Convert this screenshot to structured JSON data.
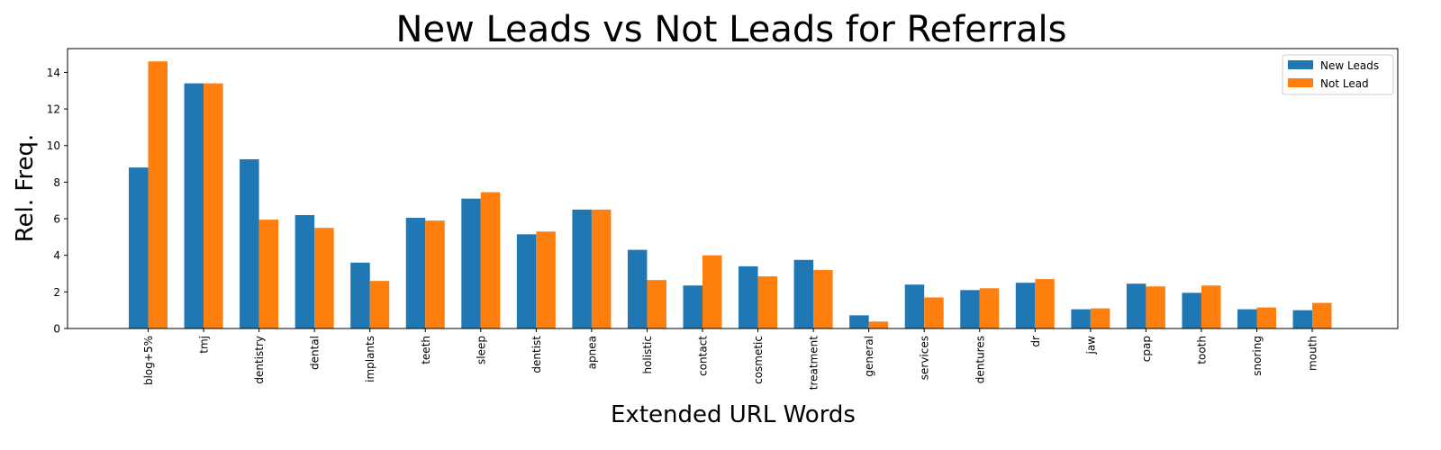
{
  "chart_data": {
    "type": "bar",
    "title": "New Leads vs Not Leads for Referrals",
    "xlabel": "Extended URL Words",
    "ylabel": "Rel. Freq.",
    "ylim": [
      0,
      15.3
    ],
    "yticks": [
      0,
      2,
      4,
      6,
      8,
      10,
      12,
      14
    ],
    "grid": false,
    "legend_position": "top-right",
    "categories": [
      "blog+5%",
      "tmj",
      "dentistry",
      "dental",
      "implants",
      "teeth",
      "sleep",
      "dentist",
      "apnea",
      "holistic",
      "contact",
      "cosmetic",
      "treatment",
      "general",
      "services",
      "dentures",
      "dr",
      "jaw",
      "cpap",
      "tooth",
      "snoring",
      "mouth"
    ],
    "series": [
      {
        "name": "New Leads",
        "color": "#1f77b4",
        "values": [
          8.8,
          13.4,
          9.25,
          6.2,
          3.6,
          6.05,
          7.1,
          5.15,
          6.5,
          4.3,
          2.35,
          3.4,
          3.75,
          0.72,
          2.4,
          2.1,
          2.5,
          1.05,
          2.45,
          1.95,
          1.05,
          1.0
        ]
      },
      {
        "name": "Not Lead",
        "color": "#ff7f0e",
        "values": [
          14.6,
          13.4,
          5.95,
          5.5,
          2.6,
          5.9,
          7.45,
          5.3,
          6.5,
          2.65,
          4.0,
          2.85,
          3.2,
          0.38,
          1.7,
          2.2,
          2.7,
          1.1,
          2.3,
          2.35,
          1.15,
          1.4
        ]
      }
    ]
  }
}
